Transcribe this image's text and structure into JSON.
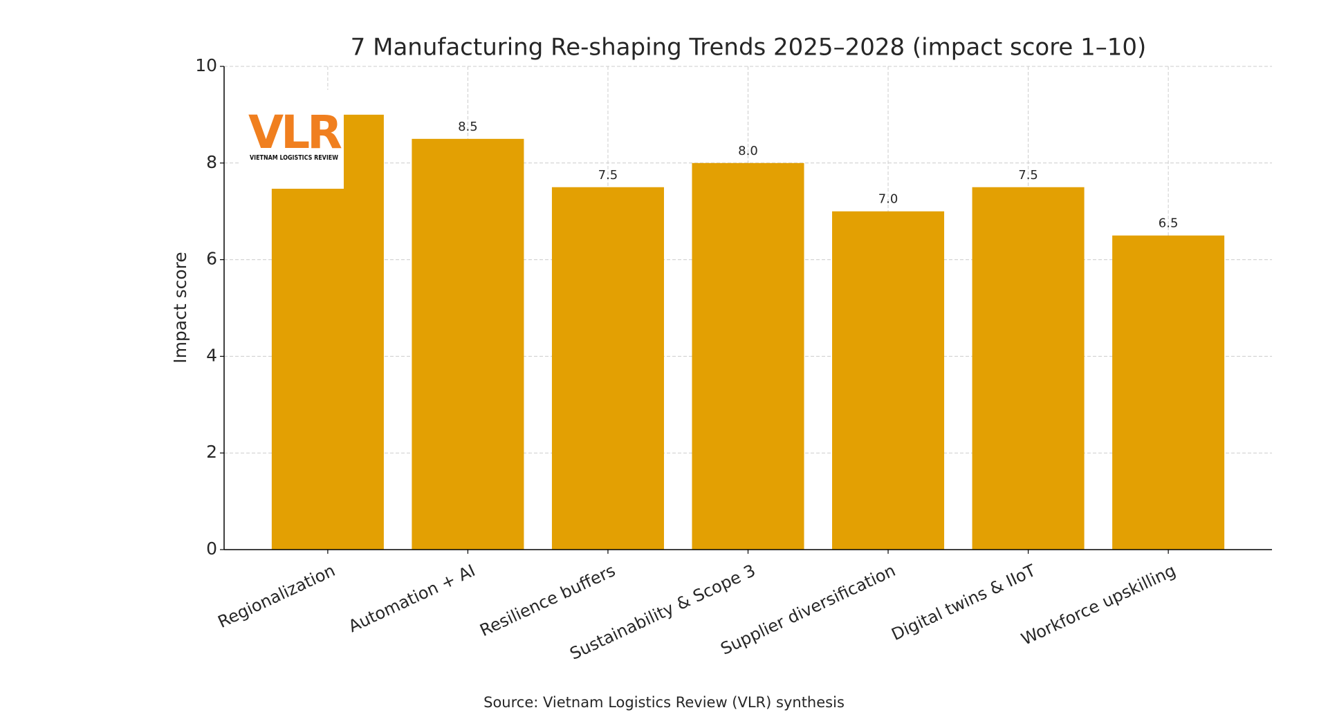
{
  "chart_data": {
    "type": "bar",
    "title": "7 Manufacturing Re-shaping Trends 2025–2028 (impact score 1–10)",
    "y_label": "Impact score",
    "categories": [
      "Regionalization",
      "Automation + AI",
      "Resilience buffers",
      "Sustainability & Scope 3",
      "Supplier diversification",
      "Digital twins & IIoT",
      "Workforce upskilling"
    ],
    "values": [
      9.0,
      8.5,
      7.5,
      8.0,
      7.0,
      7.5,
      6.5
    ],
    "value_labels": [
      null,
      "8.5",
      "7.5",
      "8.0",
      "7.0",
      "7.5",
      "6.5"
    ],
    "color": "#e3a003",
    "ylim": [
      0,
      10
    ],
    "yticks": [
      0,
      2,
      4,
      6,
      8,
      10
    ],
    "grid": true,
    "source": "Source: Vietnam Logistics Review (VLR) synthesis",
    "logo": {
      "mark": "VLR",
      "name": "VIETNAM LOGISTICS REVIEW"
    }
  }
}
